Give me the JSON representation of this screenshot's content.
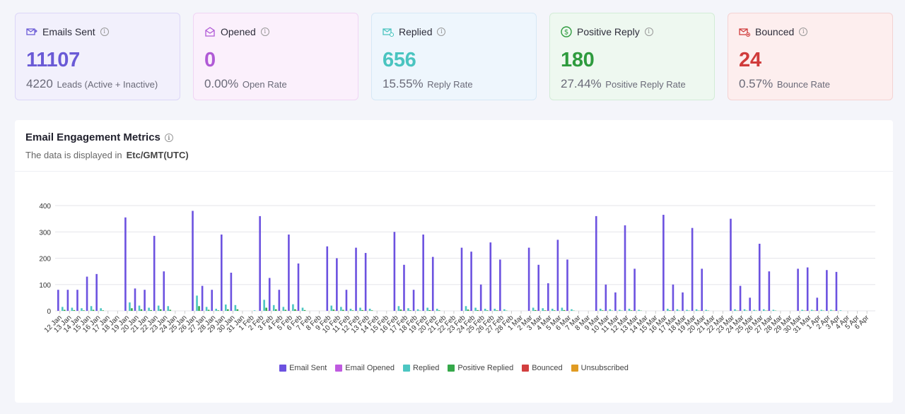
{
  "cards": [
    {
      "key": "sent",
      "title": "Emails Sent",
      "value": "11107",
      "sub_num": "4220",
      "sub_text": "Leads (Active + Inactive)",
      "bg": "#f2f0fc",
      "border": "#dcd6f7",
      "color": "#6a5ad6",
      "icon": "envelope-send-icon"
    },
    {
      "key": "opened",
      "title": "Opened",
      "value": "0",
      "sub_num": "0.00%",
      "sub_text": "Open Rate",
      "bg": "#fbf0fc",
      "border": "#f0d5f4",
      "color": "#b05ad6",
      "icon": "envelope-open-icon"
    },
    {
      "key": "replied",
      "title": "Replied",
      "value": "656",
      "sub_num": "15.55%",
      "sub_text": "Reply Rate",
      "bg": "#eef6fd",
      "border": "#d6e8f6",
      "color": "#4ac4c0",
      "icon": "envelope-reply-icon"
    },
    {
      "key": "positive",
      "title": "Positive Reply",
      "value": "180",
      "sub_num": "27.44%",
      "sub_text": "Positive Reply Rate",
      "bg": "#eef8f0",
      "border": "#d3ecd7",
      "color": "#2e9b3e",
      "icon": "dollar-circle-icon"
    },
    {
      "key": "bounced",
      "title": "Bounced",
      "value": "24",
      "sub_num": "0.57%",
      "sub_text": "Bounce Rate",
      "bg": "#fdeeee",
      "border": "#f4d3d3",
      "color": "#d03b3b",
      "icon": "envelope-bounce-icon"
    }
  ],
  "panel": {
    "title": "Email Engagement Metrics",
    "sub_prefix": "The data is displayed in",
    "timezone": "Etc/GMT(UTC)"
  },
  "chart_data": {
    "type": "bar",
    "ylim": [
      0,
      400
    ],
    "yticks": [
      0,
      100,
      200,
      300,
      400
    ],
    "categories": [
      "12 Jan",
      "13 Jan",
      "14 Jan",
      "15 Jan",
      "16 Jan",
      "17 Jan",
      "18 Jan",
      "19 Jan",
      "20 Jan",
      "21 Jan",
      "22 Jan",
      "23 Jan",
      "24 Jan",
      "25 Jan",
      "26 Jan",
      "27 Jan",
      "28 Jan",
      "29 Jan",
      "30 Jan",
      "31 Jan",
      "1 Feb",
      "2 Feb",
      "3 Feb",
      "4 Feb",
      "5 Feb",
      "6 Feb",
      "7 Feb",
      "8 Feb",
      "9 Feb",
      "10 Feb",
      "11 Feb",
      "12 Feb",
      "13 Feb",
      "14 Feb",
      "15 Feb",
      "16 Feb",
      "17 Feb",
      "18 Feb",
      "19 Feb",
      "20 Feb",
      "21 Feb",
      "22 Feb",
      "23 Feb",
      "24 Feb",
      "25 Feb",
      "26 Feb",
      "27 Feb",
      "28 Feb",
      "1 Mar",
      "2 Mar",
      "3 Mar",
      "4 Mar",
      "5 Mar",
      "6 Mar",
      "7 Mar",
      "8 Mar",
      "9 Mar",
      "10 Mar",
      "11 Mar",
      "12 Mar",
      "13 Mar",
      "14 Mar",
      "15 Mar",
      "16 Mar",
      "17 Mar",
      "18 Mar",
      "19 Mar",
      "20 Mar",
      "21 Mar",
      "22 Mar",
      "23 Mar",
      "24 Mar",
      "25 Mar",
      "26 Mar",
      "27 Mar",
      "28 Mar",
      "29 Mar",
      "30 Mar",
      "31 Mar",
      "1 Apr",
      "2 Apr",
      "3 Apr",
      "4 Apr",
      "5 Apr",
      "6 Apr"
    ],
    "series": [
      {
        "name": "Email Sent",
        "color": "#6c52e0",
        "values": [
          80,
          80,
          80,
          130,
          140,
          0,
          0,
          355,
          85,
          80,
          285,
          150,
          0,
          0,
          380,
          95,
          80,
          290,
          145,
          0,
          0,
          360,
          125,
          80,
          290,
          180,
          0,
          0,
          245,
          200,
          80,
          240,
          220,
          0,
          0,
          300,
          175,
          80,
          290,
          205,
          0,
          0,
          240,
          225,
          100,
          260,
          195,
          0,
          0,
          240,
          175,
          105,
          270,
          195,
          0,
          0,
          360,
          100,
          70,
          325,
          160,
          0,
          0,
          365,
          100,
          70,
          315,
          160,
          0,
          0,
          350,
          95,
          50,
          255,
          150,
          0,
          0,
          160,
          165,
          50,
          155,
          148,
          0,
          0,
          0
        ]
      },
      {
        "name": "Email Opened",
        "color": "#bf5ae0",
        "values": [
          0,
          0,
          0,
          0,
          0,
          0,
          0,
          0,
          0,
          0,
          0,
          0,
          0,
          0,
          0,
          0,
          0,
          0,
          0,
          0,
          0,
          0,
          0,
          0,
          0,
          0,
          0,
          0,
          0,
          0,
          0,
          0,
          0,
          0,
          0,
          0,
          0,
          0,
          0,
          0,
          0,
          0,
          0,
          0,
          0,
          0,
          0,
          0,
          0,
          0,
          0,
          0,
          0,
          0,
          0,
          0,
          0,
          0,
          0,
          0,
          0,
          0,
          0,
          0,
          0,
          0,
          0,
          0,
          0,
          0,
          0,
          0,
          0,
          0,
          0,
          0,
          0,
          0,
          0,
          0,
          0,
          0,
          0,
          0,
          0
        ]
      },
      {
        "name": "Replied",
        "color": "#4cc6c2",
        "values": [
          15,
          12,
          10,
          18,
          10,
          0,
          0,
          32,
          20,
          12,
          20,
          18,
          0,
          0,
          58,
          15,
          8,
          24,
          22,
          0,
          2,
          42,
          22,
          15,
          25,
          12,
          0,
          0,
          20,
          15,
          8,
          12,
          8,
          0,
          0,
          18,
          10,
          6,
          12,
          8,
          0,
          0,
          18,
          12,
          8,
          8,
          6,
          0,
          0,
          12,
          10,
          8,
          12,
          6,
          0,
          0,
          8,
          6,
          4,
          8,
          4,
          0,
          0,
          8,
          6,
          4,
          6,
          4,
          0,
          0,
          6,
          6,
          4,
          6,
          4,
          0,
          0,
          4,
          4,
          4,
          4,
          2,
          0,
          0,
          0
        ]
      },
      {
        "name": "Positive Replied",
        "color": "#35a84a",
        "values": [
          4,
          3,
          2,
          4,
          2,
          0,
          0,
          10,
          6,
          3,
          6,
          4,
          0,
          0,
          18,
          4,
          2,
          6,
          6,
          0,
          0,
          12,
          6,
          4,
          6,
          3,
          0,
          0,
          5,
          4,
          2,
          3,
          2,
          0,
          0,
          5,
          2,
          1,
          3,
          2,
          0,
          0,
          5,
          3,
          2,
          2,
          1,
          0,
          0,
          3,
          2,
          2,
          3,
          1,
          0,
          0,
          2,
          1,
          1,
          2,
          1,
          0,
          0,
          2,
          1,
          1,
          1,
          1,
          0,
          0,
          1,
          1,
          1,
          1,
          1,
          0,
          0,
          1,
          1,
          1,
          1,
          0,
          0,
          0,
          0
        ]
      },
      {
        "name": "Bounced",
        "color": "#d23f3f",
        "values": [
          0,
          0,
          0,
          0,
          0,
          0,
          0,
          0,
          0,
          0,
          0,
          0,
          0,
          0,
          1,
          0,
          0,
          0,
          0,
          0,
          0,
          1,
          0,
          0,
          1,
          0,
          0,
          0,
          1,
          0,
          0,
          1,
          0,
          0,
          0,
          1,
          0,
          0,
          1,
          0,
          0,
          0,
          1,
          1,
          0,
          1,
          0,
          0,
          0,
          1,
          1,
          0,
          1,
          0,
          0,
          0,
          1,
          0,
          0,
          1,
          0,
          0,
          0,
          1,
          0,
          0,
          1,
          0,
          0,
          0,
          1,
          0,
          0,
          1,
          0,
          0,
          0,
          1,
          1,
          0,
          1,
          0,
          0,
          0,
          0
        ]
      },
      {
        "name": "Unsubscribed",
        "color": "#e09b22",
        "values": [
          0,
          0,
          0,
          0,
          0,
          0,
          0,
          0,
          0,
          0,
          0,
          0,
          0,
          0,
          0,
          0,
          0,
          0,
          0,
          0,
          0,
          0,
          0,
          0,
          0,
          0,
          0,
          0,
          0,
          0,
          0,
          0,
          0,
          0,
          0,
          0,
          0,
          0,
          0,
          0,
          0,
          0,
          0,
          0,
          0,
          0,
          0,
          0,
          0,
          0,
          0,
          0,
          0,
          0,
          0,
          0,
          0,
          0,
          0,
          0,
          0,
          0,
          0,
          0,
          0,
          0,
          0,
          0,
          0,
          0,
          0,
          0,
          0,
          0,
          0,
          0,
          0,
          0,
          0,
          0,
          0,
          0,
          0,
          0,
          0
        ]
      }
    ],
    "legend": "bottom-center",
    "grid": true
  }
}
